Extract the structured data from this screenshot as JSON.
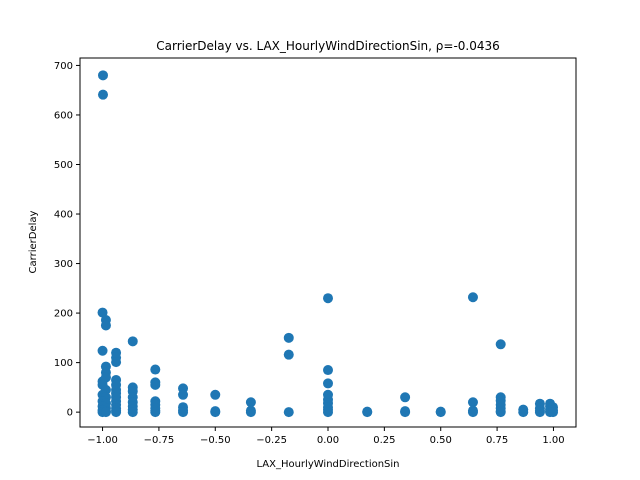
{
  "chart_data": {
    "type": "scatter",
    "title": "CarrierDelay vs. LAX_HourlyWindDirectionSin, ρ=-0.0436",
    "xlabel": "LAX_HourlyWindDirectionSin",
    "ylabel": "CarrierDelay",
    "xlim": [
      -1.1,
      1.1
    ],
    "ylim": [
      -30,
      715
    ],
    "xticks": [
      -1.0,
      -0.75,
      -0.5,
      -0.25,
      0.0,
      0.25,
      0.5,
      0.75,
      1.0
    ],
    "xtick_labels": [
      "−1.00",
      "−0.75",
      "−0.50",
      "−0.25",
      "0.00",
      "0.25",
      "0.50",
      "0.75",
      "1.00"
    ],
    "yticks": [
      0,
      100,
      200,
      300,
      400,
      500,
      600,
      700
    ],
    "ytick_labels": [
      "0",
      "100",
      "200",
      "300",
      "400",
      "500",
      "600",
      "700"
    ],
    "grid": false,
    "marker_color": "#1f77b4",
    "points": [
      {
        "x": -0.998,
        "y": 680
      },
      {
        "x": -0.998,
        "y": 641
      },
      {
        "x": -1.0,
        "y": 201
      },
      {
        "x": -0.985,
        "y": 186
      },
      {
        "x": -0.985,
        "y": 175
      },
      {
        "x": -1.0,
        "y": 124
      },
      {
        "x": -0.985,
        "y": 92
      },
      {
        "x": -0.985,
        "y": 80
      },
      {
        "x": -0.985,
        "y": 70
      },
      {
        "x": -1.0,
        "y": 62
      },
      {
        "x": -1.0,
        "y": 55
      },
      {
        "x": -0.985,
        "y": 45
      },
      {
        "x": -1.0,
        "y": 35
      },
      {
        "x": -0.985,
        "y": 30
      },
      {
        "x": -1.0,
        "y": 22
      },
      {
        "x": -0.985,
        "y": 18
      },
      {
        "x": -1.0,
        "y": 12
      },
      {
        "x": -0.985,
        "y": 8
      },
      {
        "x": -1.0,
        "y": 4
      },
      {
        "x": -0.985,
        "y": 2
      },
      {
        "x": -1.0,
        "y": 0
      },
      {
        "x": -0.985,
        "y": 0
      },
      {
        "x": -0.94,
        "y": 120
      },
      {
        "x": -0.94,
        "y": 110
      },
      {
        "x": -0.94,
        "y": 101
      },
      {
        "x": -0.94,
        "y": 65
      },
      {
        "x": -0.94,
        "y": 55
      },
      {
        "x": -0.94,
        "y": 45
      },
      {
        "x": -0.94,
        "y": 38
      },
      {
        "x": -0.94,
        "y": 30
      },
      {
        "x": -0.94,
        "y": 22
      },
      {
        "x": -0.94,
        "y": 15
      },
      {
        "x": -0.94,
        "y": 8
      },
      {
        "x": -0.94,
        "y": 3
      },
      {
        "x": -0.94,
        "y": 0
      },
      {
        "x": -0.866,
        "y": 143
      },
      {
        "x": -0.866,
        "y": 50
      },
      {
        "x": -0.866,
        "y": 42
      },
      {
        "x": -0.866,
        "y": 30
      },
      {
        "x": -0.866,
        "y": 20
      },
      {
        "x": -0.866,
        "y": 12
      },
      {
        "x": -0.866,
        "y": 5
      },
      {
        "x": -0.866,
        "y": 0
      },
      {
        "x": -0.766,
        "y": 86
      },
      {
        "x": -0.766,
        "y": 60
      },
      {
        "x": -0.766,
        "y": 55
      },
      {
        "x": -0.766,
        "y": 22
      },
      {
        "x": -0.766,
        "y": 15
      },
      {
        "x": -0.766,
        "y": 8
      },
      {
        "x": -0.766,
        "y": 3
      },
      {
        "x": -0.766,
        "y": 0
      },
      {
        "x": -0.643,
        "y": 48
      },
      {
        "x": -0.643,
        "y": 35
      },
      {
        "x": -0.643,
        "y": 10
      },
      {
        "x": -0.643,
        "y": 4
      },
      {
        "x": -0.643,
        "y": 0
      },
      {
        "x": -0.5,
        "y": 35
      },
      {
        "x": -0.5,
        "y": 2
      },
      {
        "x": -0.5,
        "y": 0
      },
      {
        "x": -0.342,
        "y": 20
      },
      {
        "x": -0.342,
        "y": 3
      },
      {
        "x": -0.342,
        "y": 0
      },
      {
        "x": -0.174,
        "y": 150
      },
      {
        "x": -0.174,
        "y": 116
      },
      {
        "x": -0.174,
        "y": 0
      },
      {
        "x": 0.0,
        "y": 230
      },
      {
        "x": 0.0,
        "y": 85
      },
      {
        "x": 0.0,
        "y": 58
      },
      {
        "x": 0.0,
        "y": 35
      },
      {
        "x": 0.0,
        "y": 25
      },
      {
        "x": 0.0,
        "y": 18
      },
      {
        "x": 0.0,
        "y": 10
      },
      {
        "x": 0.0,
        "y": 5
      },
      {
        "x": 0.0,
        "y": 0
      },
      {
        "x": 0.174,
        "y": 0
      },
      {
        "x": 0.174,
        "y": 1
      },
      {
        "x": 0.342,
        "y": 30
      },
      {
        "x": 0.342,
        "y": 2
      },
      {
        "x": 0.342,
        "y": 0
      },
      {
        "x": 0.5,
        "y": 0
      },
      {
        "x": 0.5,
        "y": 1
      },
      {
        "x": 0.643,
        "y": 232
      },
      {
        "x": 0.643,
        "y": 20
      },
      {
        "x": 0.643,
        "y": 3
      },
      {
        "x": 0.643,
        "y": 0
      },
      {
        "x": 0.766,
        "y": 137
      },
      {
        "x": 0.766,
        "y": 30
      },
      {
        "x": 0.766,
        "y": 23
      },
      {
        "x": 0.766,
        "y": 15
      },
      {
        "x": 0.766,
        "y": 8
      },
      {
        "x": 0.766,
        "y": 2
      },
      {
        "x": 0.766,
        "y": 0
      },
      {
        "x": 0.866,
        "y": 5
      },
      {
        "x": 0.866,
        "y": 0
      },
      {
        "x": 0.94,
        "y": 17
      },
      {
        "x": 0.94,
        "y": 8
      },
      {
        "x": 0.94,
        "y": 3
      },
      {
        "x": 0.94,
        "y": 0
      },
      {
        "x": 0.985,
        "y": 17
      },
      {
        "x": 0.985,
        "y": 12
      },
      {
        "x": 0.985,
        "y": 6
      },
      {
        "x": 0.985,
        "y": 2
      },
      {
        "x": 0.985,
        "y": 0
      },
      {
        "x": 0.998,
        "y": 10
      },
      {
        "x": 0.998,
        "y": 4
      },
      {
        "x": 0.998,
        "y": 0
      }
    ]
  }
}
